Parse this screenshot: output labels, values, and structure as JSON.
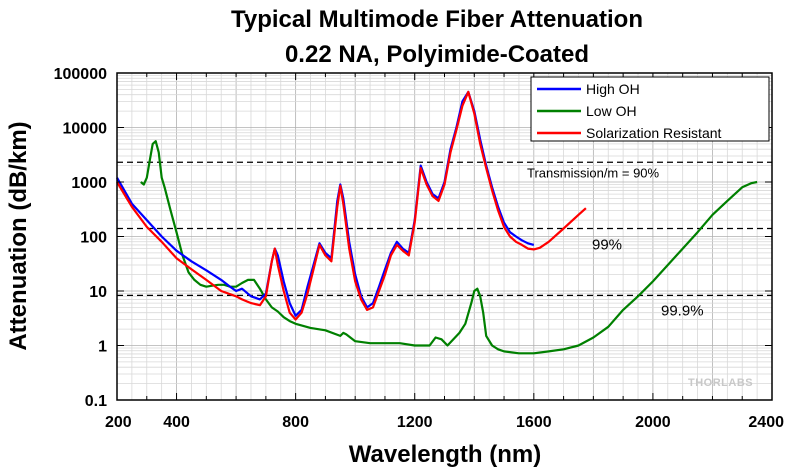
{
  "chart_data": {
    "type": "line",
    "title": [
      "Typical Multimode Fiber Attenuation",
      "0.22 NA, Polyimide-Coated"
    ],
    "xlabel": "Wavelength (nm)",
    "ylabel": "Attenuation (dB/km)",
    "xlim": [
      200,
      2400
    ],
    "ylim": [
      0.1,
      100000
    ],
    "yscale": "log",
    "grid": true,
    "x_ticks": [
      200,
      400,
      800,
      1200,
      1600,
      2000,
      2400
    ],
    "x_tick_labels": [
      "200",
      "400",
      "800",
      "1200",
      "1600",
      "2000",
      "2400"
    ],
    "y_ticks": [
      0.1,
      1,
      10,
      100,
      1000,
      10000,
      100000
    ],
    "y_tick_labels": [
      "0.1",
      "1",
      "10",
      "100",
      "1000",
      "10000",
      "100000"
    ],
    "legend": {
      "position": "top-right",
      "entries": [
        "High OH",
        "Low OH",
        "Solarization Resistant"
      ]
    },
    "series": [
      {
        "name": "High OH",
        "color": "#0000ff",
        "x": [
          200,
          250,
          300,
          350,
          400,
          450,
          500,
          550,
          580,
          600,
          620,
          650,
          680,
          700,
          720,
          730,
          740,
          760,
          780,
          800,
          820,
          840,
          860,
          880,
          900,
          920,
          940,
          950,
          960,
          980,
          1000,
          1020,
          1040,
          1060,
          1080,
          1100,
          1120,
          1140,
          1160,
          1180,
          1200,
          1220,
          1240,
          1260,
          1280,
          1300,
          1320,
          1340,
          1360,
          1380,
          1400,
          1420,
          1440,
          1460,
          1480,
          1500,
          1520,
          1540,
          1560,
          1580,
          1600
        ],
        "y": [
          1200,
          400,
          200,
          100,
          55,
          35,
          24,
          16,
          12,
          10,
          11,
          8,
          7,
          9,
          35,
          60,
          45,
          15,
          6,
          3.5,
          4.5,
          12,
          30,
          75,
          50,
          40,
          450,
          900,
          500,
          80,
          20,
          8,
          5,
          6,
          12,
          25,
          50,
          80,
          60,
          50,
          200,
          2000,
          1000,
          600,
          500,
          1000,
          4000,
          10000,
          30000,
          45000,
          20000,
          6000,
          2000,
          800,
          350,
          180,
          120,
          100,
          85,
          75,
          70
        ]
      },
      {
        "name": "Low OH",
        "color": "#008000",
        "x": [
          280,
          290,
          300,
          310,
          320,
          330,
          340,
          350,
          360,
          380,
          400,
          420,
          440,
          460,
          480,
          500,
          520,
          540,
          560,
          580,
          600,
          620,
          640,
          660,
          680,
          700,
          720,
          740,
          760,
          780,
          800,
          850,
          900,
          950,
          960,
          970,
          1000,
          1050,
          1100,
          1150,
          1200,
          1250,
          1270,
          1290,
          1310,
          1330,
          1350,
          1370,
          1390,
          1400,
          1410,
          1420,
          1430,
          1440,
          1460,
          1480,
          1500,
          1550,
          1600,
          1650,
          1700,
          1750,
          1800,
          1850,
          1900,
          1950,
          2000,
          2050,
          2100,
          2150,
          2200,
          2250,
          2300,
          2330,
          2350
        ],
        "y": [
          1000,
          900,
          1200,
          2500,
          5000,
          5600,
          3500,
          1200,
          800,
          300,
          120,
          45,
          22,
          16,
          13,
          12,
          12.5,
          13,
          13,
          12,
          12,
          14,
          16,
          16,
          11,
          7,
          5,
          4.2,
          3.3,
          2.8,
          2.5,
          2.1,
          1.9,
          1.5,
          1.7,
          1.6,
          1.2,
          1.1,
          1.1,
          1.1,
          1.0,
          1.0,
          1.4,
          1.3,
          1.0,
          1.3,
          1.7,
          2.5,
          6,
          10,
          11,
          8,
          4,
          1.5,
          1.0,
          0.85,
          0.78,
          0.72,
          0.72,
          0.78,
          0.85,
          1.0,
          1.4,
          2.2,
          4.5,
          8,
          15,
          30,
          60,
          120,
          250,
          450,
          800,
          950,
          1000
        ]
      },
      {
        "name": "Solarization Resistant",
        "color": "#ff0000",
        "x": [
          200,
          250,
          300,
          350,
          400,
          450,
          500,
          550,
          600,
          620,
          650,
          680,
          700,
          720,
          730,
          740,
          760,
          780,
          800,
          820,
          840,
          860,
          880,
          900,
          920,
          940,
          950,
          960,
          980,
          1000,
          1020,
          1040,
          1060,
          1080,
          1100,
          1120,
          1140,
          1160,
          1180,
          1200,
          1220,
          1240,
          1260,
          1280,
          1300,
          1320,
          1340,
          1360,
          1380,
          1400,
          1420,
          1440,
          1460,
          1480,
          1500,
          1520,
          1540,
          1560,
          1580,
          1600,
          1620,
          1650,
          1700,
          1750,
          1775
        ],
        "y": [
          1000,
          350,
          150,
          80,
          40,
          25,
          16,
          10,
          8,
          7,
          6,
          5.5,
          8,
          35,
          60,
          30,
          10,
          4,
          3,
          4,
          9,
          25,
          70,
          45,
          35,
          350,
          850,
          400,
          60,
          15,
          7,
          4.5,
          5,
          10,
          20,
          45,
          70,
          55,
          45,
          180,
          1800,
          900,
          550,
          450,
          900,
          3500,
          9000,
          25000,
          45000,
          18000,
          5000,
          1800,
          700,
          300,
          150,
          100,
          80,
          70,
          60,
          58,
          62,
          80,
          140,
          250,
          330
        ]
      }
    ],
    "reference_lines": [
      {
        "y": 2300,
        "label": "Transmission/m = 90%"
      },
      {
        "y": 140,
        "label": "99%"
      },
      {
        "y": 8.3,
        "label": "99.9%"
      }
    ],
    "watermark": "THORLABS"
  }
}
